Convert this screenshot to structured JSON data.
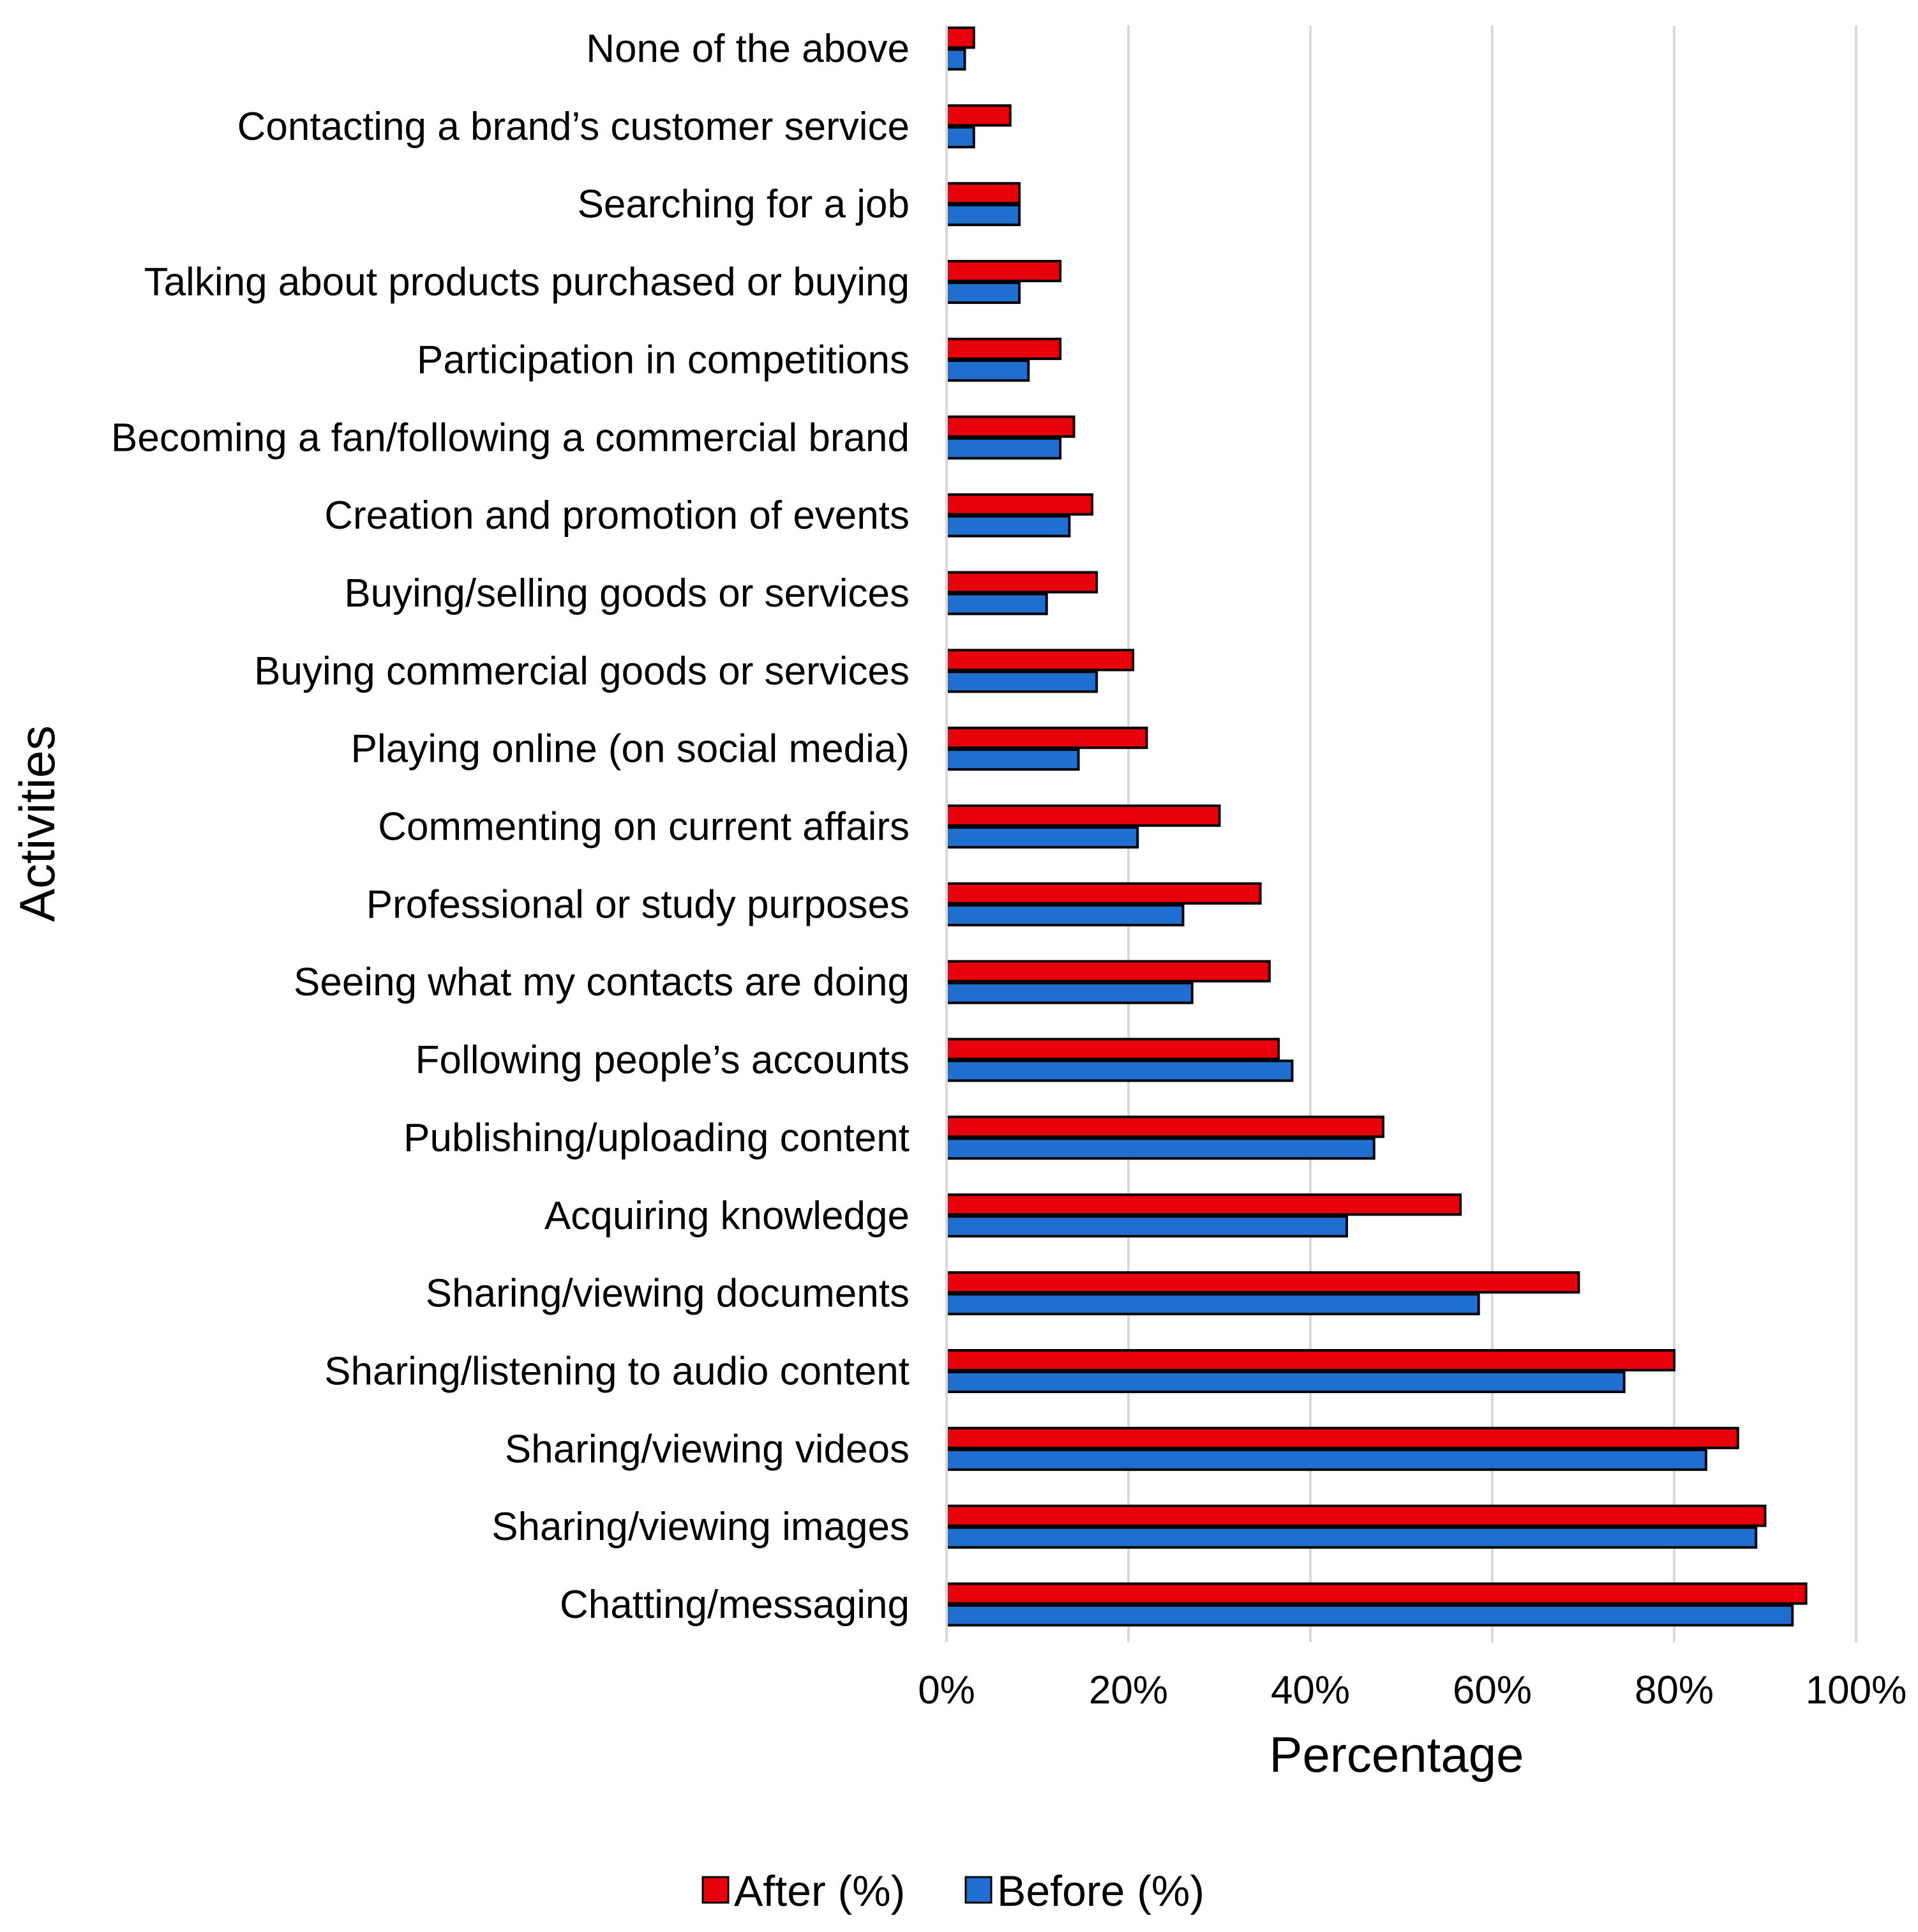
{
  "colors": {
    "after": "#e8000b",
    "before": "#1f6fd1",
    "gridline": "#d9d9d9",
    "bar_border": "#000000"
  },
  "chart_data": {
    "type": "bar",
    "orientation": "horizontal",
    "title": "",
    "xlabel": "Percentage",
    "ylabel": "Activities",
    "xlim": [
      0,
      100
    ],
    "x_ticks": [
      0,
      20,
      40,
      60,
      80,
      100
    ],
    "x_tick_labels": [
      "0%",
      "20%",
      "40%",
      "60%",
      "80%",
      "100%"
    ],
    "grid": "vertical",
    "legend_position": "bottom",
    "categories": [
      "None of the above",
      "Contacting a brand’s customer service",
      "Searching for a job",
      "Talking about products purchased or buying",
      "Participation in competitions",
      "Becoming a fan/following a commercial brand",
      "Creation and promotion of events",
      "Buying/selling goods or services",
      "Buying commercial goods or services",
      "Playing online (on social media)",
      "Commenting on current affairs",
      "Professional or study purposes",
      "Seeing what my contacts are doing",
      "Following people’s accounts",
      "Publishing/uploading content",
      "Acquiring knowledge",
      "Sharing/viewing documents",
      "Sharing/listening to audio content",
      "Sharing/viewing videos",
      "Sharing/viewing images",
      "Chatting/messaging"
    ],
    "series": [
      {
        "name": "After (%)",
        "color_key": "after",
        "values": [
          3,
          7,
          8,
          12.5,
          12.5,
          14,
          16,
          16.5,
          20.5,
          22,
          30,
          34.5,
          35.5,
          36.5,
          48,
          56.5,
          69.5,
          80,
          87,
          90,
          94.5
        ]
      },
      {
        "name": "Before (%)",
        "color_key": "before",
        "values": [
          2,
          3,
          8,
          8,
          9,
          12.5,
          13.5,
          11,
          16.5,
          14.5,
          21,
          26,
          27,
          38,
          47,
          44,
          58.5,
          74.5,
          83.5,
          89,
          93
        ]
      }
    ]
  }
}
